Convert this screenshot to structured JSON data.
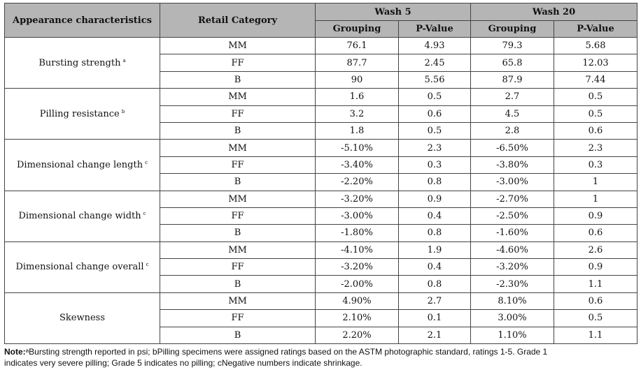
{
  "headers": {
    "appearance": "Appearance characteristics",
    "retail": "Retail Category",
    "wash5": "Wash 5",
    "wash20": "Wash 20",
    "grouping": "Grouping",
    "pvalue": "P-Value"
  },
  "groups": [
    {
      "label": "Bursting strength",
      "sup": "a",
      "rows": [
        {
          "cat": "MM",
          "w5g": "76.1",
          "w5p": "4.93",
          "w20g": "79.3",
          "w20p": "5.68"
        },
        {
          "cat": "FF",
          "w5g": "87.7",
          "w5p": "2.45",
          "w20g": "65.8",
          "w20p": "12.03"
        },
        {
          "cat": "B",
          "w5g": "90",
          "w5p": "5.56",
          "w20g": "87.9",
          "w20p": "7.44"
        }
      ]
    },
    {
      "label": "Pilling resistance",
      "sup": "b",
      "rows": [
        {
          "cat": "MM",
          "w5g": "1.6",
          "w5p": "0.5",
          "w20g": "2.7",
          "w20p": "0.5"
        },
        {
          "cat": "FF",
          "w5g": "3.2",
          "w5p": "0.6",
          "w20g": "4.5",
          "w20p": "0.5"
        },
        {
          "cat": "B",
          "w5g": "1.8",
          "w5p": "0.5",
          "w20g": "2.8",
          "w20p": "0.6"
        }
      ]
    },
    {
      "label": "Dimensional change length",
      "sup": "c",
      "rows": [
        {
          "cat": "MM",
          "w5g": "-5.10%",
          "w5p": "2.3",
          "w20g": "-6.50%",
          "w20p": "2.3"
        },
        {
          "cat": "FF",
          "w5g": "-3.40%",
          "w5p": "0.3",
          "w20g": "-3.80%",
          "w20p": "0.3"
        },
        {
          "cat": "B",
          "w5g": "-2.20%",
          "w5p": "0.8",
          "w20g": "-3.00%",
          "w20p": "1"
        }
      ]
    },
    {
      "label": "Dimensional change width",
      "sup": "c",
      "rows": [
        {
          "cat": "MM",
          "w5g": "-3.20%",
          "w5p": "0.9",
          "w20g": "-2.70%",
          "w20p": "1"
        },
        {
          "cat": "FF",
          "w5g": "-3.00%",
          "w5p": "0.4",
          "w20g": "-2.50%",
          "w20p": "0.9"
        },
        {
          "cat": "B",
          "w5g": "-1.80%",
          "w5p": "0.8",
          "w20g": "-1.60%",
          "w20p": "0.6"
        }
      ]
    },
    {
      "label": "Dimensional change overall",
      "sup": "c",
      "rows": [
        {
          "cat": "MM",
          "w5g": "-4.10%",
          "w5p": "1.9",
          "w20g": "-4.60%",
          "w20p": "2.6"
        },
        {
          "cat": "FF",
          "w5g": "-3.20%",
          "w5p": "0.4",
          "w20g": "-3.20%",
          "w20p": "0.9"
        },
        {
          "cat": "B",
          "w5g": "-2.00%",
          "w5p": "0.8",
          "w20g": "-2.30%",
          "w20p": "1.1"
        }
      ]
    },
    {
      "label": "Skewness",
      "sup": "",
      "rows": [
        {
          "cat": "MM",
          "w5g": "4.90%",
          "w5p": "2.7",
          "w20g": "8.10%",
          "w20p": "0.6"
        },
        {
          "cat": "FF",
          "w5g": "2.10%",
          "w5p": "0.1",
          "w20g": "3.00%",
          "w20p": "0.5"
        },
        {
          "cat": "B",
          "w5g": "2.20%",
          "w5p": "2.1",
          "w20g": "1.10%",
          "w20p": "1.1"
        }
      ]
    }
  ],
  "note": {
    "label": "Note:",
    "text_line1": "ᵃBursting strength reported in psi; bPilling specimens were assigned ratings based on the ASTM photographic standard, ratings 1-5. Grade 1",
    "text_line2": "indicates very severe pilling; Grade 5 indicates no pilling; cNegative numbers indicate shrinkage."
  }
}
